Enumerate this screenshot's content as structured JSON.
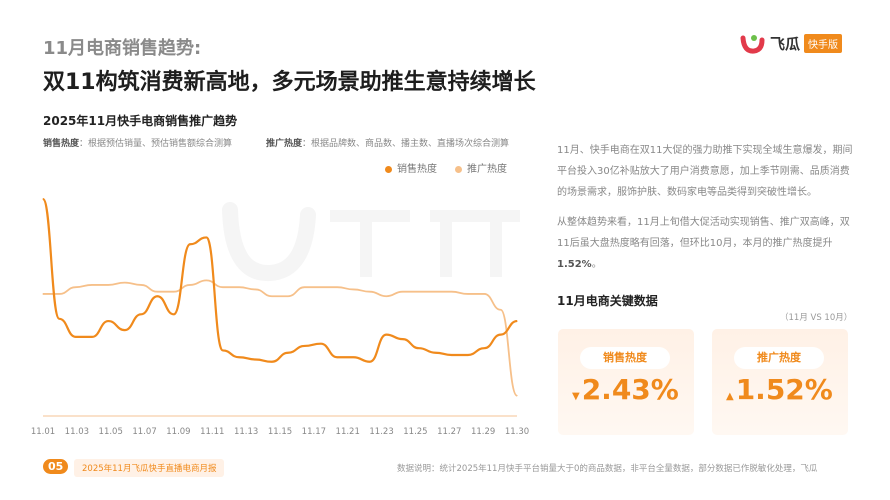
{
  "header": {
    "kicker": "11月电商销售趋势:",
    "headline": "双11构筑消费新高地，多元场景助推生意持续增长"
  },
  "logo": {
    "brand": "飞瓜",
    "badge": "快手版",
    "watermark": "飞瓜 快手版"
  },
  "notes": {
    "sales_label": "销售热度",
    "sales_desc": "：根据预估销量、预估销售额综合测算",
    "promo_label": "推广热度",
    "promo_desc": "：根据品牌数、商品数、播主数、直播场次综合测算"
  },
  "colors": {
    "sales": "#f08a1c",
    "promo": "#f6c08a",
    "accent": "#f08a1c"
  },
  "chart_data": {
    "type": "line",
    "title": "2025年11月快手电商销售推广趋势",
    "x": [
      "11.01",
      "11.02",
      "11.03",
      "11.04",
      "11.05",
      "11.06",
      "11.07",
      "11.08",
      "11.09",
      "11.10",
      "11.11",
      "11.12",
      "11.13",
      "11.14",
      "11.15",
      "11.16",
      "11.17",
      "11.18",
      "11.19",
      "11.20",
      "11.21",
      "11.22",
      "11.23",
      "11.24",
      "11.25",
      "11.26",
      "11.27",
      "11.28",
      "11.29",
      "11.30"
    ],
    "tick_labels": [
      "11.01",
      "11.03",
      "11.05",
      "11.07",
      "11.09",
      "11.11",
      "11.13",
      "11.15",
      "11.17",
      "11.21",
      "11.23",
      "11.25",
      "11.27",
      "11.29",
      "11.30"
    ],
    "ylim": [
      0,
      100
    ],
    "grid": false,
    "legend": "top-right",
    "series": [
      {
        "name": "销售热度",
        "values": [
          96,
          43,
          35,
          35,
          42,
          38,
          45,
          53,
          45,
          76,
          79,
          29,
          26,
          25,
          24,
          28,
          31,
          32,
          26,
          26,
          24,
          36,
          34,
          30,
          28,
          27,
          27,
          30,
          36,
          42
        ]
      },
      {
        "name": "推广热度",
        "values": [
          54,
          54,
          57,
          58,
          58,
          59,
          58,
          55,
          55,
          58,
          60,
          57,
          57,
          56,
          53,
          53,
          57,
          57,
          57,
          56,
          55,
          53,
          55,
          55,
          55,
          55,
          54,
          54,
          47,
          9
        ]
      }
    ]
  },
  "summary": {
    "p1": "11月、快手电商在双11大促的强力助推下实现全域生意爆发，期间平台投入30亿补贴放大了用户消费意愿，加上季节刚需、品质消费的场景需求，服饰护肤、数码家电等品类得到突破性增长。",
    "p2a": "从整体趋势来看，11月上旬借大促活动实现销售、推广双高峰，双11后虽大盘热度略有回落，但环比10月，本月的推广热度提升 ",
    "p2b": "1.52%",
    "p2c": "。"
  },
  "key_data": {
    "title": "11月电商关键数据",
    "subtitle": "（11月 VS 10月）",
    "cards": [
      {
        "label": "销售热度",
        "arrow": "▼",
        "value": "2.43%",
        "direction": "down"
      },
      {
        "label": "推广热度",
        "arrow": "▲",
        "value": "1.52%",
        "direction": "up"
      }
    ]
  },
  "footer": {
    "page": "05",
    "report": "2025年11月飞瓜快手直播电商月报",
    "note": "数据说明：统计2025年11月快手平台销量大于0的商品数据，非平台全量数据，部分数据已作脱敏化处理，飞瓜"
  }
}
